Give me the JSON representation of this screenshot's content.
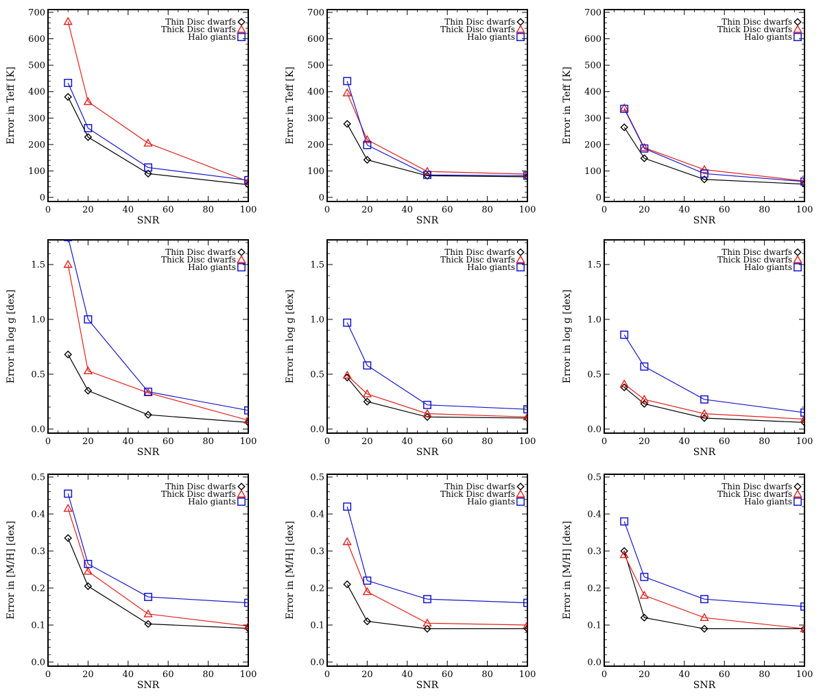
{
  "legend_entries": [
    {
      "name": "Thin Disc dwarfs",
      "color": "#000000",
      "marker": "diamond"
    },
    {
      "name": "Thick Disc dwarfs",
      "color": "#e0201c",
      "marker": "triangle"
    },
    {
      "name": "Halo giants",
      "color": "#1515c8",
      "marker": "square"
    }
  ],
  "chart_data": [
    {
      "type": "line",
      "xlabel": "SNR",
      "ylabel": "Error in Teff [K]",
      "xlim": [
        0,
        100
      ],
      "ylim": [
        0,
        700
      ],
      "xticks": [
        0,
        20,
        40,
        60,
        80,
        100
      ],
      "yticks": [
        0,
        100,
        200,
        300,
        400,
        500,
        600,
        700
      ],
      "ytick_labels": [
        "0",
        "100",
        "200",
        "300",
        "400",
        "500",
        "600",
        "700"
      ],
      "legend": "top-right",
      "x": [
        10,
        20,
        50,
        100
      ],
      "series": [
        {
          "name": "Thin Disc dwarfs",
          "values": [
            380,
            228,
            90,
            48
          ]
        },
        {
          "name": "Thick Disc dwarfs",
          "values": [
            665,
            362,
            205,
            60
          ]
        },
        {
          "name": "Halo giants",
          "values": [
            433,
            262,
            113,
            65
          ]
        }
      ]
    },
    {
      "type": "line",
      "xlabel": "SNR",
      "ylabel": "Error in Teff [K]",
      "xlim": [
        0,
        100
      ],
      "ylim": [
        0,
        700
      ],
      "xticks": [
        0,
        20,
        40,
        60,
        80,
        100
      ],
      "yticks": [
        0,
        100,
        200,
        300,
        400,
        500,
        600,
        700
      ],
      "ytick_labels": [
        "0",
        "100",
        "200",
        "300",
        "400",
        "500",
        "600",
        "700"
      ],
      "legend": "top-right",
      "x": [
        10,
        20,
        50,
        100
      ],
      "series": [
        {
          "name": "Thin Disc dwarfs",
          "values": [
            278,
            142,
            82,
            78
          ]
        },
        {
          "name": "Thick Disc dwarfs",
          "values": [
            395,
            218,
            98,
            88
          ]
        },
        {
          "name": "Halo giants",
          "values": [
            440,
            198,
            85,
            82
          ]
        }
      ]
    },
    {
      "type": "line",
      "xlabel": "SNR",
      "ylabel": "Error in Teff [K]",
      "xlim": [
        0,
        100
      ],
      "ylim": [
        0,
        700
      ],
      "xticks": [
        0,
        20,
        40,
        60,
        80,
        100
      ],
      "yticks": [
        0,
        100,
        200,
        300,
        400,
        500,
        600,
        700
      ],
      "ytick_labels": [
        "0",
        "100",
        "200",
        "300",
        "400",
        "500",
        "600",
        "700"
      ],
      "legend": "top-right",
      "x": [
        10,
        20,
        50,
        100
      ],
      "series": [
        {
          "name": "Thin Disc dwarfs",
          "values": [
            265,
            148,
            68,
            50
          ]
        },
        {
          "name": "Thick Disc dwarfs",
          "values": [
            338,
            188,
            105,
            62
          ]
        },
        {
          "name": "Halo giants",
          "values": [
            335,
            185,
            90,
            60
          ]
        }
      ]
    },
    {
      "type": "line",
      "xlabel": "SNR",
      "ylabel": "Error in log g [dex]",
      "xlim": [
        0,
        100
      ],
      "ylim": [
        0,
        1.7
      ],
      "xticks": [
        0,
        20,
        40,
        60,
        80,
        100
      ],
      "yticks": [
        0,
        0.5,
        1.0,
        1.5
      ],
      "ytick_labels": [
        "0.0",
        "0.5",
        "1.0",
        "1.5"
      ],
      "legend": "top-right",
      "x": [
        10,
        20,
        50,
        100
      ],
      "series": [
        {
          "name": "Thin Disc dwarfs",
          "values": [
            0.68,
            0.35,
            0.13,
            0.06
          ]
        },
        {
          "name": "Thick Disc dwarfs",
          "values": [
            1.5,
            0.53,
            0.33,
            0.08
          ]
        },
        {
          "name": "Halo giants",
          "values": [
            1.75,
            1.0,
            0.34,
            0.17
          ]
        }
      ]
    },
    {
      "type": "line",
      "xlabel": "SNR",
      "ylabel": "Error in log g [dex]",
      "xlim": [
        0,
        100
      ],
      "ylim": [
        0,
        1.7
      ],
      "xticks": [
        0,
        20,
        40,
        60,
        80,
        100
      ],
      "yticks": [
        0,
        0.5,
        1.0,
        1.5
      ],
      "ytick_labels": [
        "0.0",
        "0.5",
        "1.0",
        "1.5"
      ],
      "legend": "top-right",
      "x": [
        10,
        20,
        50,
        100
      ],
      "series": [
        {
          "name": "Thin Disc dwarfs",
          "values": [
            0.47,
            0.25,
            0.11,
            0.1
          ]
        },
        {
          "name": "Thick Disc dwarfs",
          "values": [
            0.49,
            0.32,
            0.14,
            0.11
          ]
        },
        {
          "name": "Halo giants",
          "values": [
            0.97,
            0.58,
            0.22,
            0.18
          ]
        }
      ]
    },
    {
      "type": "line",
      "xlabel": "SNR",
      "ylabel": "Error in log g [dex]",
      "xlim": [
        0,
        100
      ],
      "ylim": [
        0,
        1.7
      ],
      "xticks": [
        0,
        20,
        40,
        60,
        80,
        100
      ],
      "yticks": [
        0,
        0.5,
        1.0,
        1.5
      ],
      "ytick_labels": [
        "0.0",
        "0.5",
        "1.0",
        "1.5"
      ],
      "legend": "top-right",
      "x": [
        10,
        20,
        50,
        100
      ],
      "series": [
        {
          "name": "Thin Disc dwarfs",
          "values": [
            0.38,
            0.23,
            0.1,
            0.06
          ]
        },
        {
          "name": "Thick Disc dwarfs",
          "values": [
            0.41,
            0.27,
            0.14,
            0.09
          ]
        },
        {
          "name": "Halo giants",
          "values": [
            0.86,
            0.57,
            0.27,
            0.15
          ]
        }
      ]
    },
    {
      "type": "line",
      "xlabel": "SNR",
      "ylabel": "Error in [M/H] [dex]",
      "xlim": [
        0,
        100
      ],
      "ylim": [
        0,
        0.5
      ],
      "xticks": [
        0,
        20,
        40,
        60,
        80,
        100
      ],
      "yticks": [
        0,
        0.1,
        0.2,
        0.3,
        0.4,
        0.5
      ],
      "ytick_labels": [
        "0.0",
        "0.1",
        "0.2",
        "0.3",
        "0.4",
        "0.5"
      ],
      "legend": "top-right",
      "x": [
        10,
        20,
        50,
        100
      ],
      "series": [
        {
          "name": "Thin Disc dwarfs",
          "values": [
            0.335,
            0.205,
            0.103,
            0.091
          ]
        },
        {
          "name": "Thick Disc dwarfs",
          "values": [
            0.415,
            0.245,
            0.13,
            0.097
          ]
        },
        {
          "name": "Halo giants",
          "values": [
            0.455,
            0.265,
            0.176,
            0.16
          ]
        }
      ]
    },
    {
      "type": "line",
      "xlabel": "SNR",
      "ylabel": "Error in [M/H] [dex]",
      "xlim": [
        0,
        100
      ],
      "ylim": [
        0,
        0.5
      ],
      "xticks": [
        0,
        20,
        40,
        60,
        80,
        100
      ],
      "yticks": [
        0,
        0.1,
        0.2,
        0.3,
        0.4,
        0.5
      ],
      "ytick_labels": [
        "0.0",
        "0.1",
        "0.2",
        "0.3",
        "0.4",
        "0.5"
      ],
      "legend": "top-right",
      "x": [
        10,
        20,
        50,
        100
      ],
      "series": [
        {
          "name": "Thin Disc dwarfs",
          "values": [
            0.21,
            0.11,
            0.09,
            0.09
          ]
        },
        {
          "name": "Thick Disc dwarfs",
          "values": [
            0.325,
            0.19,
            0.105,
            0.1
          ]
        },
        {
          "name": "Halo giants",
          "values": [
            0.42,
            0.22,
            0.17,
            0.16
          ]
        }
      ]
    },
    {
      "type": "line",
      "xlabel": "SNR",
      "ylabel": "Error in [M/H] [dex]",
      "xlim": [
        0,
        100
      ],
      "ylim": [
        0,
        0.5
      ],
      "xticks": [
        0,
        20,
        40,
        60,
        80,
        100
      ],
      "yticks": [
        0,
        0.1,
        0.2,
        0.3,
        0.4,
        0.5
      ],
      "ytick_labels": [
        "0.0",
        "0.1",
        "0.2",
        "0.3",
        "0.4",
        "0.5"
      ],
      "legend": "top-right",
      "x": [
        10,
        20,
        50,
        100
      ],
      "series": [
        {
          "name": "Thin Disc dwarfs",
          "values": [
            0.3,
            0.12,
            0.09,
            0.09
          ]
        },
        {
          "name": "Thick Disc dwarfs",
          "values": [
            0.29,
            0.18,
            0.12,
            0.09
          ]
        },
        {
          "name": "Halo giants",
          "values": [
            0.38,
            0.23,
            0.17,
            0.15
          ]
        }
      ]
    }
  ]
}
